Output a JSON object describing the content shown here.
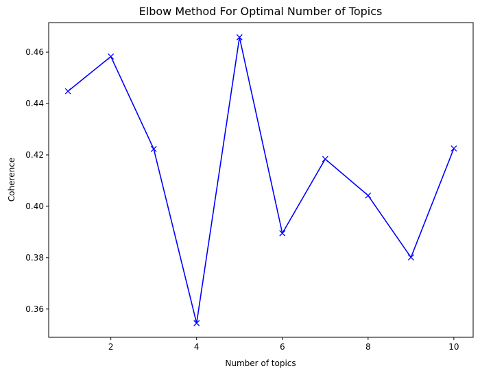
{
  "chart_data": {
    "type": "line",
    "title": "Elbow Method For Optimal Number of Topics",
    "xlabel": "Number of topics",
    "ylabel": "Coherence",
    "xlim": [
      0.55,
      10.45
    ],
    "ylim": [
      0.349,
      0.4715
    ],
    "xticks": [
      2,
      4,
      6,
      8,
      10
    ],
    "xtick_labels": [
      "2",
      "4",
      "6",
      "8",
      "10"
    ],
    "yticks": [
      0.36,
      0.38,
      0.4,
      0.42,
      0.44,
      0.46
    ],
    "ytick_labels": [
      "0.36",
      "0.38",
      "0.40",
      "0.42",
      "0.44",
      "0.46"
    ],
    "grid": false,
    "legend": "none",
    "series": [
      {
        "color": "#0000ff",
        "marker": "x",
        "x": [
          1,
          2,
          3,
          4,
          5,
          6,
          7,
          8,
          9,
          10
        ],
        "y": [
          0.4448,
          0.4583,
          0.4223,
          0.3545,
          0.4658,
          0.3895,
          0.4184,
          0.4042,
          0.3801,
          0.4225
        ]
      }
    ]
  }
}
